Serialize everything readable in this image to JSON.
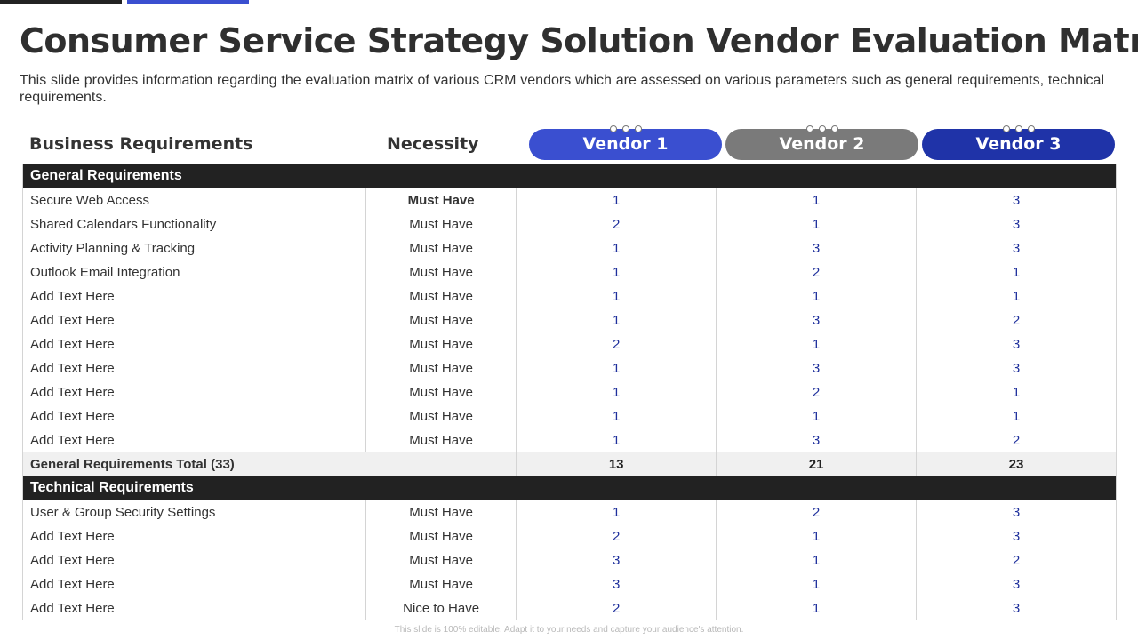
{
  "title": "Consumer Service Strategy Solution Vendor Evaluation Matrix",
  "description": "This slide provides information regarding the evaluation matrix of various CRM vendors which are assessed on various parameters such as general requirements, technical requirements.",
  "header": {
    "business_requirements": "Business Requirements",
    "necessity": "Necessity",
    "vendors": [
      "Vendor 1",
      "Vendor 2",
      "Vendor 3"
    ]
  },
  "colors": {
    "vendor1": "#3a4fd0",
    "vendor2": "#7a7a7a",
    "vendor3": "#1f33a8",
    "section": "#222222"
  },
  "general": {
    "label": "General Requirements",
    "rows": [
      {
        "req": "Secure Web Access",
        "nec": "Must Have",
        "v1": "1",
        "v2": "1",
        "v3": "3"
      },
      {
        "req": "Shared Calendars Functionality",
        "nec": "Must Have",
        "v1": "2",
        "v2": "1",
        "v3": "3"
      },
      {
        "req": "Activity Planning & Tracking",
        "nec": "Must Have",
        "v1": "1",
        "v2": "3",
        "v3": "3"
      },
      {
        "req": "Outlook Email Integration",
        "nec": "Must Have",
        "v1": "1",
        "v2": "2",
        "v3": "1"
      },
      {
        "req": "Add Text Here",
        "nec": "Must Have",
        "v1": "1",
        "v2": "1",
        "v3": "1"
      },
      {
        "req": "Add Text Here",
        "nec": "Must Have",
        "v1": "1",
        "v2": "3",
        "v3": "2"
      },
      {
        "req": "Add Text Here",
        "nec": "Must Have",
        "v1": "2",
        "v2": "1",
        "v3": "3"
      },
      {
        "req": "Add Text Here",
        "nec": "Must Have",
        "v1": "1",
        "v2": "3",
        "v3": "3"
      },
      {
        "req": "Add Text Here",
        "nec": "Must Have",
        "v1": "1",
        "v2": "2",
        "v3": "1"
      },
      {
        "req": "Add Text Here",
        "nec": "Must Have",
        "v1": "1",
        "v2": "1",
        "v3": "1"
      },
      {
        "req": "Add Text Here",
        "nec": "Must Have",
        "v1": "1",
        "v2": "3",
        "v3": "2"
      }
    ],
    "total": {
      "label": "General Requirements Total (33)",
      "v1": "13",
      "v2": "21",
      "v3": "23"
    }
  },
  "technical": {
    "label": "Technical Requirements",
    "rows": [
      {
        "req": "User & Group Security Settings",
        "nec": "Must Have",
        "v1": "1",
        "v2": "2",
        "v3": "3"
      },
      {
        "req": "Add Text Here",
        "nec": "Must Have",
        "v1": "2",
        "v2": "1",
        "v3": "3"
      },
      {
        "req": "Add Text Here",
        "nec": "Must Have",
        "v1": "3",
        "v2": "1",
        "v3": "2"
      },
      {
        "req": "Add Text Here",
        "nec": "Must Have",
        "v1": "3",
        "v2": "1",
        "v3": "3"
      },
      {
        "req": "Add Text Here",
        "nec": "Nice to Have",
        "v1": "2",
        "v2": "1",
        "v3": "3"
      }
    ]
  },
  "footer": "This slide is 100% editable. Adapt it to your needs and capture your audience's attention."
}
